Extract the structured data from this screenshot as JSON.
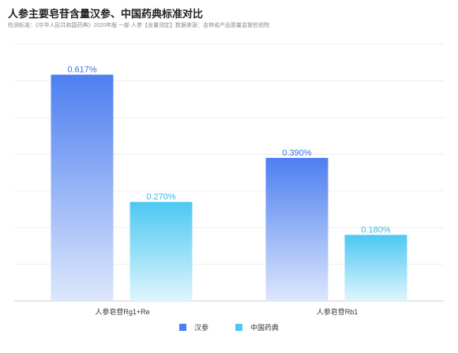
{
  "title": "人参主要皂苷含量汉参、中国药典标准对比",
  "subtitle": "检测标准：《中华人民共和国药典》2020年版 一部 人参【含量测定】数据来源：吉林省产品质量监督检验院",
  "chart_data": {
    "type": "bar",
    "categories": [
      "人参皂苷Rg1+Re",
      "人参皂苷Rb1"
    ],
    "series": [
      {
        "name": "汉参",
        "values": [
          0.617,
          0.39
        ],
        "labels": [
          "0.617%",
          "0.390%"
        ],
        "color": "#4d7ff0",
        "fade": "#dde7fd",
        "label_color": "#3b6fe0"
      },
      {
        "name": "中国药典",
        "values": [
          0.27,
          0.18
        ],
        "labels": [
          "0.270%",
          "0.180%"
        ],
        "color": "#4cc8f2",
        "fade": "#dff5fd",
        "label_color": "#39b7e6"
      }
    ],
    "ylim": [
      0,
      0.7
    ],
    "grid": true,
    "legend": "bottom"
  }
}
